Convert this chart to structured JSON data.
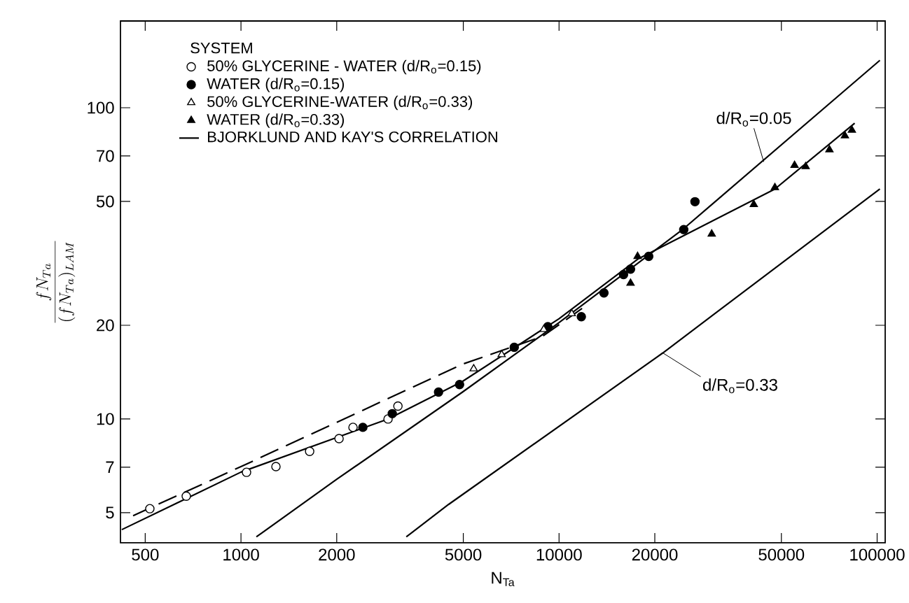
{
  "chart_data": {
    "type": "scatter",
    "xlabel": "N$_{Ta}$",
    "ylabel": "\\frac{f N_{Ta}}{(f N_{Ta})_{LAM}}",
    "log": "xy",
    "xlim": [
      418,
      106000
    ],
    "ylim": [
      4,
      190
    ],
    "xticks": [
      500,
      1000,
      2000,
      5000,
      10000,
      20000,
      50000,
      100000
    ],
    "yticks": [
      5,
      7,
      10,
      20,
      50,
      70,
      100
    ],
    "grid": false,
    "legend": "top left",
    "legend_title": "SYSTEM",
    "series": [
      {
        "name": "50% GLYCERINE - WATER (d/R$_{o}$=0.15)",
        "marker": "circle",
        "color": "#ffffff",
        "x": [
          517,
          673,
          1041,
          1288,
          1644,
          2034,
          2250,
          2900,
          3115
        ],
        "values": [
          5.15,
          5.65,
          6.74,
          7.03,
          7.87,
          8.65,
          9.4,
          10,
          11.0
        ]
      },
      {
        "name": "WATER (d/R$_{o}$=0.15)",
        "marker": "circle",
        "color": "#000000",
        "x": [
          2416,
          2990,
          4180,
          4867,
          7230,
          9220,
          11750,
          13840,
          15950,
          16780,
          19140,
          24660,
          26750
        ],
        "values": [
          9.4,
          10.4,
          12.2,
          12.9,
          17.0,
          19.8,
          21.3,
          25.4,
          29.1,
          30.3,
          33.3,
          40.6,
          49.9
        ]
      },
      {
        "name": "50% GLYCERINE-WATER (d/R$_{o}$=0.33)",
        "marker": "triangle",
        "color": "#ffffff",
        "x": [
          5390,
          6600,
          8950,
          10960
        ],
        "values": [
          14.5,
          16.1,
          19.4,
          21.8
        ]
      },
      {
        "name": "WATER (d/R$_{o}$=0.33)",
        "marker": "triangle",
        "color": "#000000",
        "x": [
          16780,
          17660,
          30200,
          40950,
          47700,
          55000,
          59600,
          70800,
          79200,
          83300
        ],
        "values": [
          27.3,
          33.3,
          39.3,
          48.9,
          55.4,
          65.3,
          64.7,
          73.3,
          81.3,
          84.7
        ]
      },
      {
        "name": "BJORKLUND AND KAY'S CORRELATION",
        "type": "line",
        "line_style": "dashed",
        "marker": "none",
        "color": "#000000",
        "x": [
          458,
          1000,
          4970,
          8850,
          12360
        ],
        "values": [
          4.89,
          7.03,
          15.0,
          18.4,
          23.4
        ]
      },
      {
        "type": "line",
        "line_style": "solid",
        "marker": "none",
        "color": "#000000",
        "x": [
          422,
          1000,
          2900,
          4970,
          10000,
          17660,
          47700,
          85000
        ],
        "values": [
          4.41,
          6.75,
          10,
          13.2,
          21,
          32.6,
          54.8,
          89.2
        ]
      },
      {
        "type": "line",
        "line_style": "solid",
        "marker": "none",
        "color": "#000000",
        "x": [
          1118,
          2000,
          4970,
          10000,
          24660,
          102000
        ],
        "values": [
          4.18,
          6.4,
          12.2,
          20.4,
          40.9,
          142
        ]
      },
      {
        "type": "line",
        "line_style": "solid",
        "marker": "none",
        "color": "#000000",
        "x": [
          3310,
          4490,
          21200,
          102000
        ],
        "values": [
          4.18,
          5.31,
          16.3,
          54.8
        ]
      }
    ],
    "annotations": [
      {
        "text": "d/R$_{o}$=0.05",
        "x": 44000,
        "y": 67
      },
      {
        "text": "d/R$_{o}$=0.33",
        "x": 21200,
        "y": 16.3
      }
    ]
  }
}
